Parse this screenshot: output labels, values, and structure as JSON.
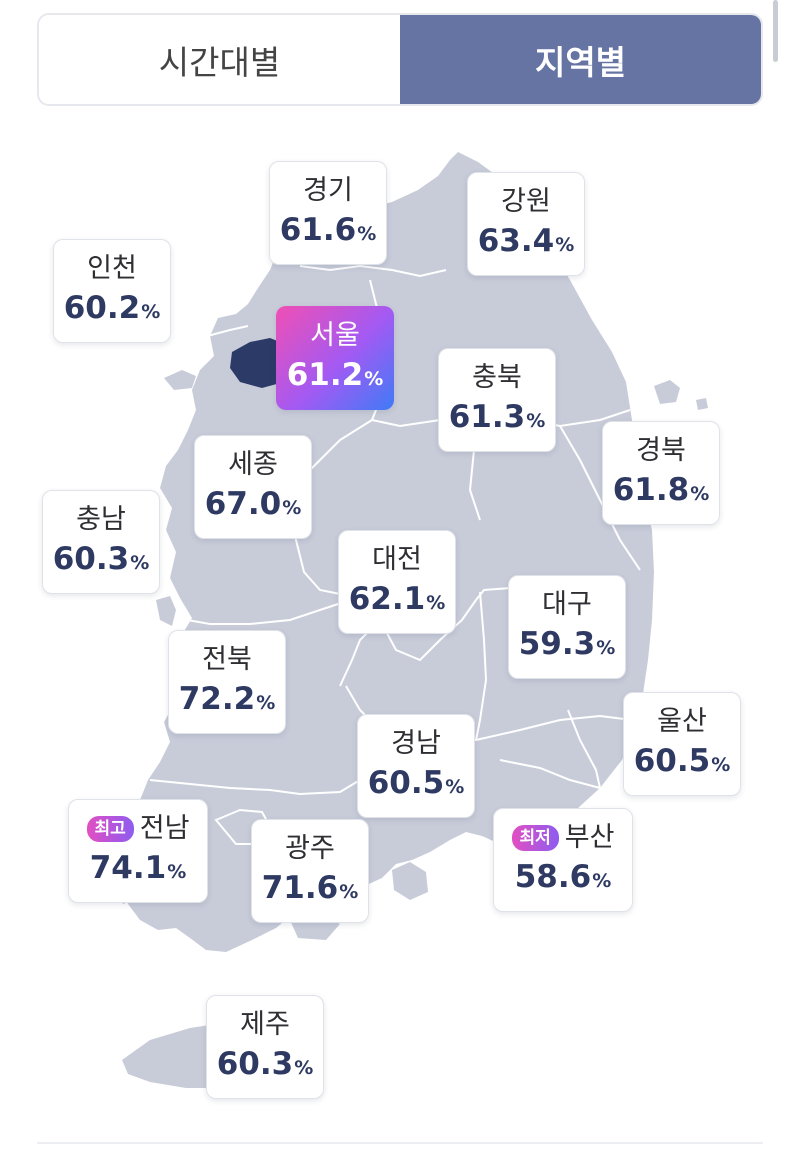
{
  "tabs": [
    {
      "label": "시간대별",
      "active": false
    },
    {
      "label": "지역별",
      "active": true
    }
  ],
  "unit": "%",
  "colors": {
    "map_fill": "#c8ccd9",
    "seoul_fill": "#2c3a68",
    "accent": "#6674a3",
    "value_text": "#2f3a63"
  },
  "regions": [
    {
      "key": "gyeonggi",
      "name": "경기",
      "value": "61.6"
    },
    {
      "key": "gangwon",
      "name": "강원",
      "value": "63.4"
    },
    {
      "key": "incheon",
      "name": "인천",
      "value": "60.2"
    },
    {
      "key": "seoul",
      "name": "서울",
      "value": "61.2"
    },
    {
      "key": "chungbuk",
      "name": "충북",
      "value": "61.3"
    },
    {
      "key": "gyeongbuk",
      "name": "경북",
      "value": "61.8"
    },
    {
      "key": "sejong",
      "name": "세종",
      "value": "67.0"
    },
    {
      "key": "chungnam",
      "name": "충남",
      "value": "60.3"
    },
    {
      "key": "daejeon",
      "name": "대전",
      "value": "62.1"
    },
    {
      "key": "daegu",
      "name": "대구",
      "value": "59.3"
    },
    {
      "key": "jeonbuk",
      "name": "전북",
      "value": "72.2"
    },
    {
      "key": "ulsan",
      "name": "울산",
      "value": "60.5"
    },
    {
      "key": "gyeongnam",
      "name": "경남",
      "value": "60.5"
    },
    {
      "key": "jeonnam",
      "name": "전남",
      "value": "74.1",
      "badge": "최고"
    },
    {
      "key": "gwangju",
      "name": "광주",
      "value": "71.6"
    },
    {
      "key": "busan",
      "name": "부산",
      "value": "58.6",
      "badge": "최저"
    },
    {
      "key": "jeju",
      "name": "제주",
      "value": "60.3"
    }
  ]
}
